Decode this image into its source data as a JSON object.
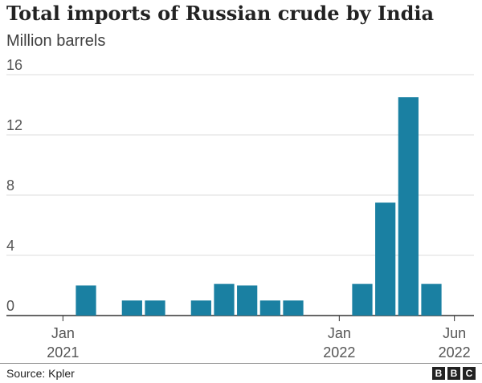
{
  "chart_data": {
    "type": "bar",
    "title": "Total imports of Russian crude by India",
    "subtitle": "Million barrels",
    "ylim": [
      0,
      16
    ],
    "yticks": [
      0,
      4,
      8,
      12,
      16
    ],
    "grid": true,
    "x": [
      "2021-01",
      "2021-02",
      "2021-03",
      "2021-04",
      "2021-05",
      "2021-06",
      "2021-07",
      "2021-08",
      "2021-09",
      "2021-10",
      "2021-11",
      "2021-12",
      "2022-01",
      "2022-02",
      "2022-03",
      "2022-04",
      "2022-05",
      "2022-06"
    ],
    "values": [
      0,
      2.0,
      0,
      1.0,
      1.0,
      0,
      1.0,
      2.1,
      2.0,
      1.0,
      1.0,
      0,
      0,
      2.1,
      7.5,
      14.5,
      2.1,
      0
    ],
    "xtick_labels": [
      {
        "month": "Jan",
        "year": "2021",
        "at": "2021-01"
      },
      {
        "month": "Jan",
        "year": "2022",
        "at": "2022-01"
      },
      {
        "month": "Jun",
        "year": "2022",
        "at": "2022-06"
      }
    ],
    "bar_color": "#1a80a2"
  },
  "footer": {
    "source": "Source: Kpler",
    "logo": [
      "B",
      "B",
      "C"
    ]
  }
}
